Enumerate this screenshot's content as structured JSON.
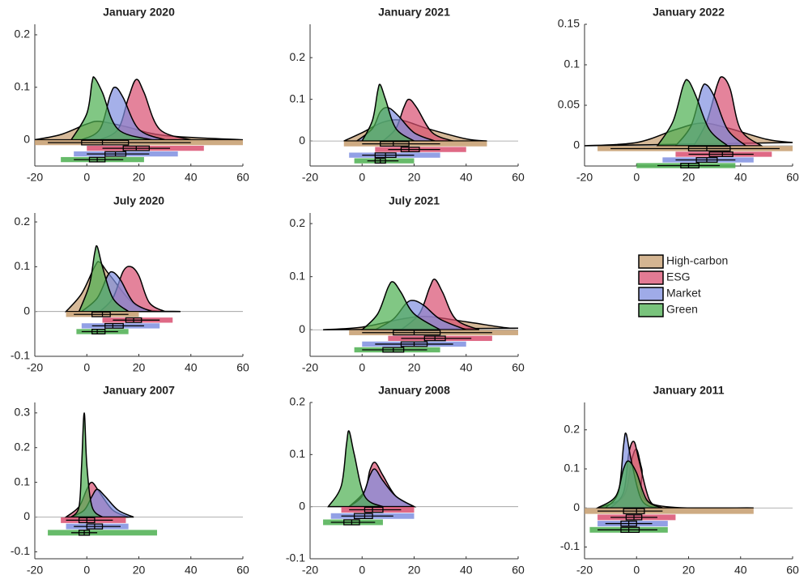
{
  "chart_data": [
    {
      "type": "raincloud",
      "title": "January 2020",
      "xlim": [
        -20,
        60
      ],
      "xticks": [
        -20,
        0,
        20,
        40,
        60
      ],
      "ylim": [
        -0.05,
        0.22
      ],
      "yticks": [
        0,
        0.1,
        0.2
      ],
      "series": [
        {
          "name": "High-carbon",
          "color": "#c69c6d",
          "x": [
            -20,
            -10,
            0,
            5,
            15,
            30,
            60
          ],
          "values": [
            0,
            0.01,
            0.03,
            0.035,
            0.025,
            0.008,
            0
          ],
          "box": [
            -15,
            -2,
            6,
            16,
            40
          ],
          "range": [
            -20,
            60
          ]
        },
        {
          "name": "ESG",
          "color": "#d94f70",
          "x": [
            5,
            12,
            16,
            19,
            22,
            28,
            40
          ],
          "values": [
            0,
            0.02,
            0.08,
            0.115,
            0.09,
            0.02,
            0
          ],
          "box": [
            6,
            14,
            19,
            24,
            32
          ],
          "range": [
            0,
            45
          ]
        },
        {
          "name": "Market",
          "color": "#7f8fe0",
          "x": [
            -2,
            5,
            9,
            11,
            14,
            20,
            30
          ],
          "values": [
            0,
            0.02,
            0.085,
            0.1,
            0.08,
            0.02,
            0
          ],
          "box": [
            0,
            7,
            11,
            15,
            24
          ],
          "range": [
            -5,
            35
          ]
        },
        {
          "name": "Green",
          "color": "#4caf50",
          "x": [
            -6,
            0,
            2,
            3,
            6,
            12,
            25
          ],
          "values": [
            0,
            0.05,
            0.11,
            0.118,
            0.09,
            0.02,
            0
          ],
          "box": [
            -5,
            1,
            4,
            7,
            14
          ],
          "range": [
            -10,
            22
          ]
        }
      ]
    },
    {
      "type": "raincloud",
      "title": "January 2021",
      "xlim": [
        -20,
        60
      ],
      "xticks": [
        -20,
        0,
        20,
        40,
        60
      ],
      "ylim": [
        -0.06,
        0.28
      ],
      "yticks": [
        0,
        0.1,
        0.2
      ],
      "series": [
        {
          "name": "High-carbon",
          "color": "#c69c6d",
          "x": [
            -7,
            0,
            8,
            15,
            25,
            40,
            48
          ],
          "values": [
            0,
            0.02,
            0.045,
            0.05,
            0.03,
            0.005,
            0
          ],
          "box": [
            0,
            7,
            12,
            18,
            30
          ],
          "range": [
            -7,
            48
          ]
        },
        {
          "name": "ESG",
          "color": "#d94f70",
          "x": [
            8,
            13,
            16,
            18,
            21,
            27,
            35
          ],
          "values": [
            0,
            0.03,
            0.08,
            0.1,
            0.08,
            0.02,
            0
          ],
          "box": [
            10,
            15,
            18,
            22,
            30
          ],
          "range": [
            5,
            40
          ]
        },
        {
          "name": "Market",
          "color": "#7f8fe0",
          "x": [
            -2,
            4,
            7,
            10,
            14,
            20,
            28
          ],
          "values": [
            0,
            0.03,
            0.07,
            0.08,
            0.06,
            0.02,
            0
          ],
          "box": [
            0,
            5,
            9,
            13,
            20
          ],
          "range": [
            -5,
            30
          ]
        },
        {
          "name": "Green",
          "color": "#4caf50",
          "x": [
            0,
            4,
            6,
            7,
            9,
            13,
            20
          ],
          "values": [
            0,
            0.05,
            0.12,
            0.135,
            0.1,
            0.03,
            0
          ],
          "box": [
            2,
            5,
            7,
            9,
            14
          ],
          "range": [
            -3,
            20
          ]
        }
      ]
    },
    {
      "type": "raincloud",
      "title": "January 2022",
      "xlim": [
        -20,
        60
      ],
      "xticks": [
        -20,
        0,
        20,
        40,
        60
      ],
      "ylim": [
        -0.025,
        0.15
      ],
      "yticks": [
        0,
        0.05,
        0.1,
        0.15
      ],
      "series": [
        {
          "name": "High-carbon",
          "color": "#c69c6d",
          "x": [
            -20,
            0,
            15,
            25,
            35,
            50,
            60
          ],
          "values": [
            0,
            0.004,
            0.02,
            0.028,
            0.022,
            0.008,
            0.004
          ],
          "box": [
            -10,
            20,
            27,
            36,
            55
          ],
          "range": [
            -15,
            60
          ]
        },
        {
          "name": "ESG",
          "color": "#d94f70",
          "x": [
            22,
            27,
            31,
            33,
            36,
            40,
            48
          ],
          "values": [
            0,
            0.03,
            0.075,
            0.085,
            0.07,
            0.02,
            0
          ],
          "box": [
            20,
            28,
            33,
            37,
            45
          ],
          "range": [
            15,
            52
          ]
        },
        {
          "name": "Market",
          "color": "#7f8fe0",
          "x": [
            15,
            21,
            25,
            27,
            30,
            35,
            42
          ],
          "values": [
            0,
            0.025,
            0.07,
            0.075,
            0.06,
            0.02,
            0
          ],
          "box": [
            15,
            23,
            27,
            31,
            38
          ],
          "range": [
            10,
            45
          ]
        },
        {
          "name": "Green",
          "color": "#4caf50",
          "x": [
            8,
            14,
            18,
            20,
            23,
            28,
            35
          ],
          "values": [
            0,
            0.03,
            0.075,
            0.08,
            0.06,
            0.02,
            0
          ],
          "box": [
            8,
            17,
            20,
            24,
            32
          ],
          "range": [
            0,
            38
          ]
        }
      ]
    },
    {
      "type": "raincloud",
      "title": "July 2020",
      "xlim": [
        -20,
        60
      ],
      "xticks": [
        -20,
        0,
        20,
        40,
        60
      ],
      "ylim": [
        -0.1,
        0.22
      ],
      "yticks": [
        -0.1,
        0,
        0.1,
        0.2
      ],
      "series": [
        {
          "name": "High-carbon",
          "color": "#c69c6d",
          "x": [
            -8,
            -2,
            3,
            5,
            9,
            20,
            36
          ],
          "values": [
            0,
            0.04,
            0.1,
            0.11,
            0.08,
            0.01,
            0
          ],
          "box": [
            -5,
            2,
            6,
            9,
            16
          ],
          "range": [
            -8,
            20
          ]
        },
        {
          "name": "ESG",
          "color": "#d94f70",
          "x": [
            5,
            10,
            14,
            17,
            20,
            24,
            30
          ],
          "values": [
            0,
            0.03,
            0.09,
            0.1,
            0.08,
            0.02,
            0
          ],
          "box": [
            10,
            15,
            18,
            21,
            28
          ],
          "range": [
            6,
            33
          ]
        },
        {
          "name": "Market",
          "color": "#7f8fe0",
          "x": [
            -2,
            4,
            8,
            10,
            13,
            18,
            25
          ],
          "values": [
            0,
            0.03,
            0.08,
            0.088,
            0.07,
            0.02,
            0
          ],
          "box": [
            2,
            7,
            10,
            14,
            22
          ],
          "range": [
            -2,
            28
          ]
        },
        {
          "name": "Green",
          "color": "#4caf50",
          "x": [
            -3,
            1,
            3,
            4,
            6,
            10,
            16
          ],
          "values": [
            0,
            0.06,
            0.13,
            0.145,
            0.1,
            0.03,
            0
          ],
          "box": [
            -2,
            2,
            4,
            7,
            12
          ],
          "range": [
            -4,
            16
          ]
        }
      ]
    },
    {
      "type": "raincloud",
      "title": "July 2021",
      "xlim": [
        -20,
        60
      ],
      "xticks": [
        -20,
        0,
        20,
        40,
        60
      ],
      "ylim": [
        -0.05,
        0.22
      ],
      "yticks": [
        0,
        0.1,
        0.2
      ],
      "series": [
        {
          "name": "High-carbon",
          "color": "#c69c6d",
          "x": [
            -15,
            0,
            15,
            25,
            40,
            55,
            60
          ],
          "values": [
            0,
            0.005,
            0.02,
            0.025,
            0.015,
            0.004,
            0.003
          ],
          "box": [
            0,
            12,
            20,
            30,
            50
          ],
          "range": [
            -5,
            60
          ]
        },
        {
          "name": "ESG",
          "color": "#d94f70",
          "x": [
            15,
            22,
            26,
            28,
            31,
            36,
            45
          ],
          "values": [
            0,
            0.03,
            0.08,
            0.095,
            0.07,
            0.02,
            0
          ],
          "box": [
            15,
            24,
            28,
            32,
            42
          ],
          "range": [
            10,
            50
          ]
        },
        {
          "name": "Market",
          "color": "#7f8fe0",
          "x": [
            5,
            12,
            17,
            20,
            24,
            30,
            40
          ],
          "values": [
            0,
            0.02,
            0.05,
            0.055,
            0.045,
            0.02,
            0
          ],
          "box": [
            5,
            15,
            20,
            25,
            35
          ],
          "range": [
            0,
            40
          ]
        },
        {
          "name": "Green",
          "color": "#4caf50",
          "x": [
            0,
            6,
            10,
            12,
            15,
            20,
            30
          ],
          "values": [
            0,
            0.03,
            0.08,
            0.09,
            0.07,
            0.03,
            0
          ],
          "box": [
            0,
            8,
            12,
            16,
            25
          ],
          "range": [
            -3,
            30
          ]
        }
      ]
    },
    {
      "type": "raincloud",
      "title": "January 2007",
      "xlim": [
        -20,
        60
      ],
      "xticks": [
        -20,
        0,
        20,
        40,
        60
      ],
      "ylim": [
        -0.12,
        0.33
      ],
      "yticks": [
        -0.1,
        0,
        0.1,
        0.2,
        0.3
      ],
      "series": [
        {
          "name": "ESG",
          "color": "#d94f70",
          "x": [
            -8,
            -3,
            0,
            2,
            5,
            10,
            16
          ],
          "values": [
            0,
            0.03,
            0.08,
            0.1,
            0.07,
            0.02,
            0
          ],
          "box": [
            -8,
            -3,
            0,
            3,
            10
          ],
          "range": [
            -10,
            15
          ]
        },
        {
          "name": "Market",
          "color": "#7f8fe0",
          "x": [
            -6,
            -1,
            2,
            4,
            7,
            12,
            18
          ],
          "values": [
            0,
            0.02,
            0.06,
            0.08,
            0.06,
            0.02,
            0
          ],
          "box": [
            -5,
            0,
            3,
            6,
            13
          ],
          "range": [
            -8,
            16
          ]
        },
        {
          "name": "Green",
          "color": "#4caf50",
          "x": [
            -6,
            -3,
            -2,
            -1,
            0,
            2,
            6
          ],
          "values": [
            0,
            0.03,
            0.15,
            0.3,
            0.15,
            0.03,
            0
          ],
          "box": [
            -6,
            -3,
            -1,
            1,
            4
          ],
          "range": [
            -15,
            27
          ]
        }
      ]
    },
    {
      "type": "raincloud",
      "title": "January 2008",
      "xlim": [
        -20,
        60
      ],
      "xticks": [
        -20,
        0,
        20,
        40,
        60
      ],
      "ylim": [
        -0.1,
        0.2
      ],
      "yticks": [
        -0.1,
        0,
        0.1,
        0.2
      ],
      "series": [
        {
          "name": "ESG",
          "color": "#d94f70",
          "x": [
            -5,
            1,
            3,
            5,
            8,
            13,
            20
          ],
          "values": [
            0,
            0.03,
            0.07,
            0.085,
            0.06,
            0.02,
            0
          ],
          "box": [
            -5,
            1,
            4,
            8,
            15
          ],
          "range": [
            -8,
            20
          ]
        },
        {
          "name": "Market",
          "color": "#7f8fe0",
          "x": [
            -5,
            0,
            3,
            5,
            8,
            13,
            20
          ],
          "values": [
            0,
            0.02,
            0.06,
            0.072,
            0.05,
            0.02,
            0
          ],
          "box": [
            -8,
            -3,
            1,
            4,
            12
          ],
          "range": [
            -12,
            20
          ]
        },
        {
          "name": "Green",
          "color": "#4caf50",
          "x": [
            -13,
            -8,
            -6,
            -5,
            -3,
            1,
            8
          ],
          "values": [
            0,
            0.04,
            0.12,
            0.145,
            0.1,
            0.02,
            0
          ],
          "box": [
            -12,
            -7,
            -4,
            -1,
            5
          ],
          "range": [
            -15,
            8
          ]
        }
      ]
    },
    {
      "type": "raincloud",
      "title": "January 2011",
      "xlim": [
        -20,
        60
      ],
      "xticks": [
        -20,
        0,
        20,
        40,
        60
      ],
      "ylim": [
        -0.13,
        0.27
      ],
      "yticks": [
        -0.1,
        0,
        0.1,
        0.2
      ],
      "series": [
        {
          "name": "High-carbon",
          "color": "#c69c6d",
          "x": [
            -15,
            -5,
            -2,
            0,
            2,
            6,
            45
          ],
          "values": [
            0,
            0.03,
            0.12,
            0.15,
            0.1,
            0.01,
            0
          ],
          "box": [
            -15,
            -5,
            0,
            3,
            10
          ],
          "range": [
            -20,
            45
          ]
        },
        {
          "name": "ESG",
          "color": "#d94f70",
          "x": [
            -10,
            -5,
            -3,
            -1,
            1,
            5,
            10
          ],
          "values": [
            0,
            0.04,
            0.14,
            0.17,
            0.12,
            0.02,
            0
          ],
          "box": [
            -10,
            -4,
            -1,
            2,
            8
          ],
          "range": [
            -15,
            15
          ]
        },
        {
          "name": "Market",
          "color": "#7f8fe0",
          "x": [
            -12,
            -7,
            -5,
            -4,
            -2,
            2,
            8
          ],
          "values": [
            0,
            0.04,
            0.16,
            0.19,
            0.12,
            0.02,
            0
          ],
          "box": [
            -12,
            -6,
            -3,
            0,
            6
          ],
          "range": [
            -15,
            12
          ]
        },
        {
          "name": "Green",
          "color": "#4caf50",
          "x": [
            -15,
            -8,
            -5,
            -3,
            0,
            4,
            10
          ],
          "values": [
            0,
            0.03,
            0.1,
            0.12,
            0.09,
            0.02,
            0
          ],
          "box": [
            -15,
            -6,
            -3,
            1,
            8
          ],
          "range": [
            -18,
            12
          ]
        }
      ]
    }
  ]
}
